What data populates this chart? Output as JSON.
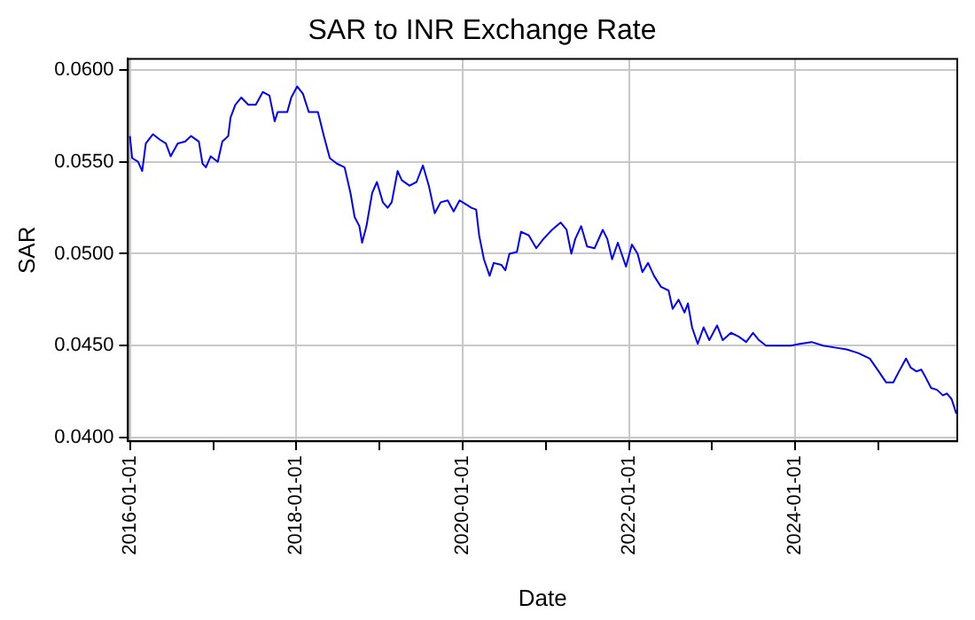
{
  "chart_data": {
    "type": "line",
    "title": "SAR to INR Exchange Rate",
    "xlabel": "Date",
    "ylabel": "SAR",
    "xlim": [
      "2015-12-24",
      "2025-12-13"
    ],
    "xticks": [
      "2016-01-01",
      {
        "value": "2017-01-01",
        "label": null
      },
      "2018-01-01",
      {
        "value": "2019-01-01",
        "label": null
      },
      "2020-01-01",
      {
        "value": "2021-01-01",
        "label": null
      },
      "2022-01-01",
      {
        "value": "2023-01-01",
        "label": null
      },
      "2024-01-01",
      {
        "value": "2025-01-01",
        "label": null
      }
    ],
    "ylim": [
      0.0398,
      0.0606
    ],
    "yticks": [
      {
        "value": 0.04,
        "label": "0.0400"
      },
      {
        "value": 0.045,
        "label": "0.0450"
      },
      {
        "value": 0.05,
        "label": "0.0500"
      },
      {
        "value": 0.055,
        "label": "0.0550"
      },
      {
        "value": 0.06,
        "label": "0.0600"
      }
    ],
    "grid": true,
    "legend": false,
    "marker": "none",
    "line_style": "solid",
    "x": [
      "2016-01-01",
      "2016-01-11",
      "2016-02-06",
      "2016-02-24",
      "2016-03-11",
      "2016-04-11",
      "2016-05-12",
      "2016-06-07",
      "2016-06-28",
      "2016-07-29",
      "2016-08-31",
      "2016-09-26",
      "2016-10-30",
      "2016-11-15",
      "2016-11-30",
      "2016-12-21",
      "2017-01-21",
      "2017-02-10",
      "2017-03-08",
      "2017-03-18",
      "2017-04-08",
      "2017-05-04",
      "2017-06-04",
      "2017-07-07",
      "2017-08-07",
      "2017-09-05",
      "2017-09-28",
      "2017-10-11",
      "2017-11-01",
      "2017-11-22",
      "2017-12-10",
      "2018-01-05",
      "2018-01-30",
      "2018-02-25",
      "2018-04-06",
      "2018-05-02",
      "2018-05-28",
      "2018-06-28",
      "2018-08-01",
      "2018-08-27",
      "2018-09-14",
      "2018-10-05",
      "2018-10-17",
      "2018-11-05",
      "2018-11-30",
      "2018-12-21",
      "2019-01-16",
      "2019-02-06",
      "2019-02-24",
      "2019-03-22",
      "2019-04-09",
      "2019-05-13",
      "2019-06-13",
      "2019-07-11",
      "2019-08-06",
      "2019-09-01",
      "2019-09-27",
      "2019-10-28",
      "2019-11-23",
      "2019-12-19",
      "2020-01-14",
      "2020-02-09",
      "2020-03-01",
      "2020-03-14",
      "2020-04-04",
      "2020-04-29",
      "2020-05-17",
      "2020-06-19",
      "2020-07-07",
      "2020-07-25",
      "2020-08-27",
      "2020-09-14",
      "2020-10-18",
      "2020-11-20",
      "2020-12-21",
      "2021-01-28",
      "2021-03-07",
      "2021-04-02",
      "2021-04-23",
      "2021-05-10",
      "2021-06-05",
      "2021-07-01",
      "2021-08-03",
      "2021-09-08",
      "2021-09-28",
      "2021-10-19",
      "2021-11-13",
      "2021-12-19",
      "2022-01-14",
      "2022-02-08",
      "2022-03-01",
      "2022-03-26",
      "2022-04-21",
      "2022-05-22",
      "2022-06-24",
      "2022-07-12",
      "2022-08-07",
      "2022-09-02",
      "2022-09-17",
      "2022-10-05",
      "2022-10-30",
      "2022-11-25",
      "2022-12-20",
      "2023-01-23",
      "2023-02-17",
      "2023-03-25",
      "2023-04-27",
      "2023-05-31",
      "2023-06-30",
      "2023-07-26",
      "2023-08-26",
      "2023-10-11",
      "2023-12-14",
      "2024-01-21",
      "2024-03-13",
      "2024-05-03",
      "2024-06-23",
      "2024-08-14",
      "2024-10-04",
      "2024-11-24",
      "2025-01-02",
      "2025-02-04",
      "2025-03-07",
      "2025-04-01",
      "2025-05-02",
      "2025-05-23",
      "2025-06-17",
      "2025-07-08",
      "2025-07-26",
      "2025-08-20",
      "2025-09-15",
      "2025-10-11",
      "2025-10-29",
      "2025-11-18",
      "2025-12-09"
    ],
    "series": [
      {
        "color": "#0000ff",
        "values": [
          0.0564,
          0.0552,
          0.055,
          0.0545,
          0.056,
          0.0565,
          0.0562,
          0.056,
          0.0553,
          0.056,
          0.0561,
          0.0564,
          0.0561,
          0.0549,
          0.0547,
          0.0553,
          0.055,
          0.0561,
          0.0564,
          0.0574,
          0.0581,
          0.0585,
          0.0581,
          0.0581,
          0.0588,
          0.0586,
          0.0572,
          0.0577,
          0.0577,
          0.0577,
          0.0585,
          0.0591,
          0.0587,
          0.0577,
          0.0577,
          0.0564,
          0.0552,
          0.0549,
          0.0547,
          0.0533,
          0.052,
          0.0515,
          0.0506,
          0.0515,
          0.0533,
          0.0539,
          0.0528,
          0.0525,
          0.0528,
          0.0545,
          0.054,
          0.0537,
          0.0539,
          0.0548,
          0.0537,
          0.0522,
          0.0528,
          0.0529,
          0.0523,
          0.0529,
          0.0527,
          0.0525,
          0.0524,
          0.051,
          0.0497,
          0.0488,
          0.0495,
          0.0494,
          0.0491,
          0.05,
          0.0501,
          0.0512,
          0.051,
          0.0503,
          0.0508,
          0.0513,
          0.0517,
          0.0513,
          0.05,
          0.0508,
          0.0515,
          0.0504,
          0.0503,
          0.0513,
          0.0508,
          0.0497,
          0.0506,
          0.0493,
          0.0505,
          0.05,
          0.049,
          0.0495,
          0.0488,
          0.0482,
          0.048,
          0.047,
          0.0475,
          0.0468,
          0.0473,
          0.046,
          0.0451,
          0.046,
          0.0453,
          0.0461,
          0.0453,
          0.0457,
          0.0455,
          0.0452,
          0.0457,
          0.0453,
          0.045,
          0.045,
          0.045,
          0.0451,
          0.0452,
          0.045,
          0.0449,
          0.0448,
          0.0446,
          0.0443,
          0.0436,
          0.043,
          0.043,
          0.0436,
          0.0443,
          0.0438,
          0.0436,
          0.0437,
          0.0433,
          0.0427,
          0.0426,
          0.0423,
          0.0424,
          0.0421,
          0.0413
        ]
      }
    ]
  }
}
